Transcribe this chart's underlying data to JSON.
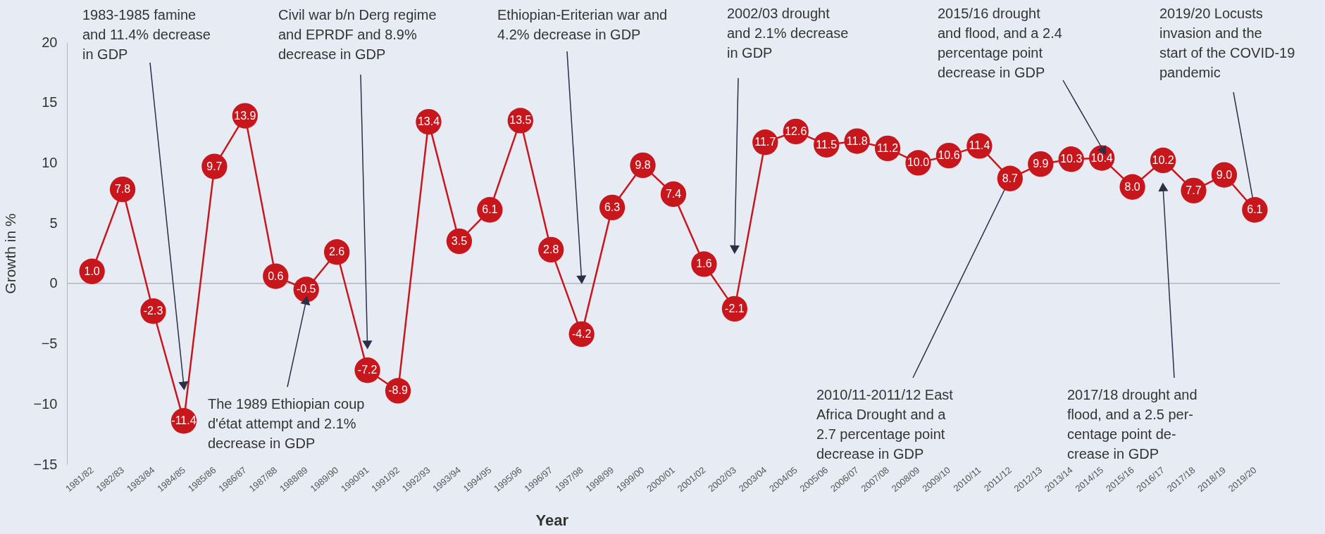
{
  "chart_data": {
    "type": "line",
    "xlabel": "Year",
    "ylabel": "Growth in %",
    "categories": [
      "1981/82",
      "1982/83",
      "1983/84",
      "1984/85",
      "1985/86",
      "1986/87",
      "1987/88",
      "1988/89",
      "1989/90",
      "1990/91",
      "1991/92",
      "1992/93",
      "1993/94",
      "1994/95",
      "1995/96",
      "1996/97",
      "1997/98",
      "1998/99",
      "1999/00",
      "2000/01",
      "2001/02",
      "2002/03",
      "2003/04",
      "2004/05",
      "2005/06",
      "2006/07",
      "2007/08",
      "2008/09",
      "2009/10",
      "2010/11",
      "2011/12",
      "2012/13",
      "2013/14",
      "2014/15",
      "2015/16",
      "2016/17",
      "2017/18",
      "2018/19",
      "2019/20"
    ],
    "values": [
      1.0,
      7.8,
      -2.3,
      -11.4,
      9.7,
      13.9,
      0.6,
      -0.5,
      2.6,
      -7.2,
      -8.9,
      13.4,
      3.5,
      6.1,
      13.5,
      2.8,
      -4.2,
      6.3,
      9.8,
      7.4,
      1.6,
      -2.1,
      11.7,
      12.6,
      11.5,
      11.8,
      11.2,
      10.0,
      10.6,
      11.4,
      8.7,
      9.9,
      10.3,
      10.4,
      8.0,
      10.2,
      7.7,
      9.0,
      6.1
    ],
    "value_labels": [
      "1.0",
      "7.8",
      "-2.3",
      "-11.4",
      "9.7",
      "13.9",
      "0.6",
      "-0.5",
      "2.6",
      "-7.2",
      "-8.9",
      "13.4",
      "3.5",
      "6.1",
      "13.5",
      "2.8",
      "-4.2",
      "6.3",
      "9.8",
      "7.4",
      "1.6",
      "-2.1",
      "11.7",
      "12.6",
      "11.5",
      "11.8",
      "11.2",
      "10.0",
      "10.6",
      "11.4",
      "8.7",
      "9.9",
      "10.3",
      "10.4",
      "8.0",
      "10.2",
      "7.7",
      "9.0",
      "6.1"
    ],
    "color": "#c8161d",
    "marker": "circle",
    "ylim": [
      -15,
      20
    ],
    "yticks": [
      -15,
      -10,
      -5,
      0,
      5,
      10,
      15,
      20
    ],
    "ref_lines": [
      {
        "axis": "y",
        "value": 0,
        "color": "#b0b5c0"
      }
    ],
    "annotations": [
      {
        "text": "1983-1985 famine\nand 11.4% decrease\nin GDP",
        "x": "1984/85",
        "y": -8.5
      },
      {
        "text": "The 1989 Ethiopian coup\nd'état attempt and 2.1%\ndecrease in GDP",
        "x": "1988/89",
        "y": -1.4
      },
      {
        "text": "Civil war b/n Derg regime\nand EPRDF and 8.9%\ndecrease in GDP",
        "x": "1990/91",
        "y": -5.1
      },
      {
        "text": "Ethiopian-Eriterian war and\n4.2% decrease in GDP",
        "x": "1997/98",
        "y": 0.3
      },
      {
        "text": "2002/03 drought\nand 2.1% decrease\nin GDP",
        "x": "2002/03",
        "y": 2.8
      },
      {
        "text": "2010/11-2011/12 East\nAfrica Drought and a\n2.7 percentage point\ndecrease in GDP",
        "x": "2011/12",
        "y": 8.7
      },
      "2015/16 drought\nand flood, and a 2.4\npercentage point\ndecrease in GDP",
      {
        "text": "2017/18 drought and\nflood, and a 2.5 per-\ncentage point de-\ncrease in GDP",
        "x": "2016/17",
        "y": 8.0
      },
      {
        "text": "2019/20 Locusts\ninvasion and the\nstart of the COVID-19\npandemic",
        "x": "2019/20",
        "y": 6.1
      }
    ]
  }
}
